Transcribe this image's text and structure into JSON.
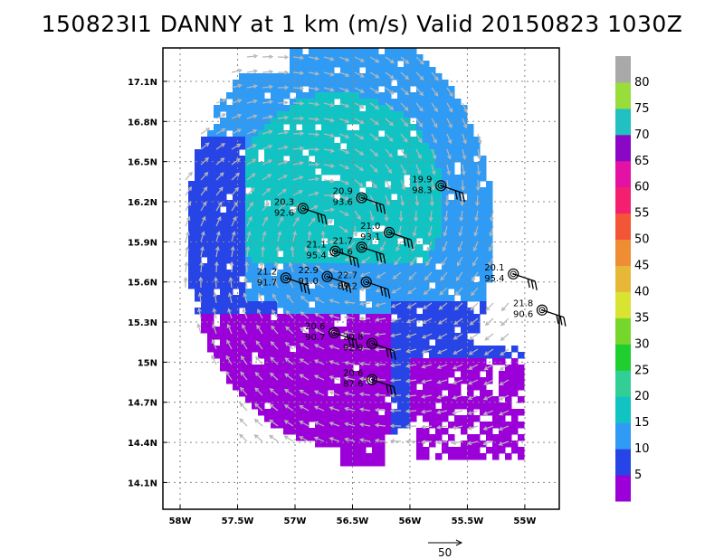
{
  "title": "150823I1 DANNY at 1 km (m/s) Valid 20150823 1030Z",
  "map": {
    "lon_range": [
      -58.15,
      -54.7
    ],
    "lat_range": [
      13.9,
      17.35
    ],
    "lat_ticks": [
      "17.1N",
      "16.8N",
      "16.5N",
      "16.2N",
      "15.9N",
      "15.6N",
      "15.3N",
      "15N",
      "14.7N",
      "14.4N",
      "14.1N"
    ],
    "lat_values": [
      17.1,
      16.8,
      16.5,
      16.2,
      15.9,
      15.6,
      15.3,
      15.0,
      14.7,
      14.4,
      14.1
    ],
    "lon_ticks": [
      "58W",
      "57.5W",
      "57W",
      "56.5W",
      "56W",
      "55.5W",
      "55W"
    ],
    "lon_values": [
      -58,
      -57.5,
      -57,
      -56.5,
      -56,
      -55.5,
      -55
    ],
    "grid": true
  },
  "colorbar": {
    "labels": [
      "5",
      "10",
      "15",
      "20",
      "25",
      "30",
      "35",
      "40",
      "45",
      "50",
      "55",
      "60",
      "65",
      "70",
      "75",
      "80"
    ],
    "colors": [
      "#9b00d8",
      "#2744e6",
      "#2f9bf4",
      "#12c3c3",
      "#31cf96",
      "#1fcf2f",
      "#77d62b",
      "#d9e331",
      "#e7b838",
      "#ef8d32",
      "#f25636",
      "#f4206f",
      "#e311a4",
      "#8a08c5",
      "#22c1c1",
      "#99dd3a",
      "#a9a9a9"
    ]
  },
  "reference_vector": {
    "label": "50",
    "value": 50
  },
  "observations": [
    {
      "t": "20.9",
      "p": "93.6",
      "lon": -56.42,
      "lat": 16.23
    },
    {
      "t": "20.3",
      "p": "92.6",
      "lon": -56.93,
      "lat": 16.15
    },
    {
      "t": "19.9",
      "p": "98.3",
      "lon": -55.73,
      "lat": 16.32
    },
    {
      "t": "21.0",
      "p": "93.1",
      "lon": -56.18,
      "lat": 15.97
    },
    {
      "t": "21.7",
      "p": "94.6",
      "lon": -56.42,
      "lat": 15.86
    },
    {
      "t": "21.1",
      "p": "95.4",
      "lon": -56.65,
      "lat": 15.83
    },
    {
      "t": "21.2",
      "p": "91.7",
      "lon": -57.08,
      "lat": 15.63
    },
    {
      "t": "22.9",
      "p": "91.0",
      "lon": -56.72,
      "lat": 15.64
    },
    {
      "t": "22.7",
      "p": "89.2",
      "lon": -56.38,
      "lat": 15.6
    },
    {
      "t": "20.1",
      "p": "95.4",
      "lon": -55.1,
      "lat": 15.66
    },
    {
      "t": "21.8",
      "p": "90.6",
      "lon": -54.85,
      "lat": 15.39
    },
    {
      "t": "20.6",
      "p": "90.7",
      "lon": -56.66,
      "lat": 15.22
    },
    {
      "t": "20.8",
      "p": "92.9",
      "lon": -56.33,
      "lat": 15.14
    },
    {
      "t": "20.6",
      "p": "87.6",
      "lon": -56.33,
      "lat": 14.87
    }
  ]
}
